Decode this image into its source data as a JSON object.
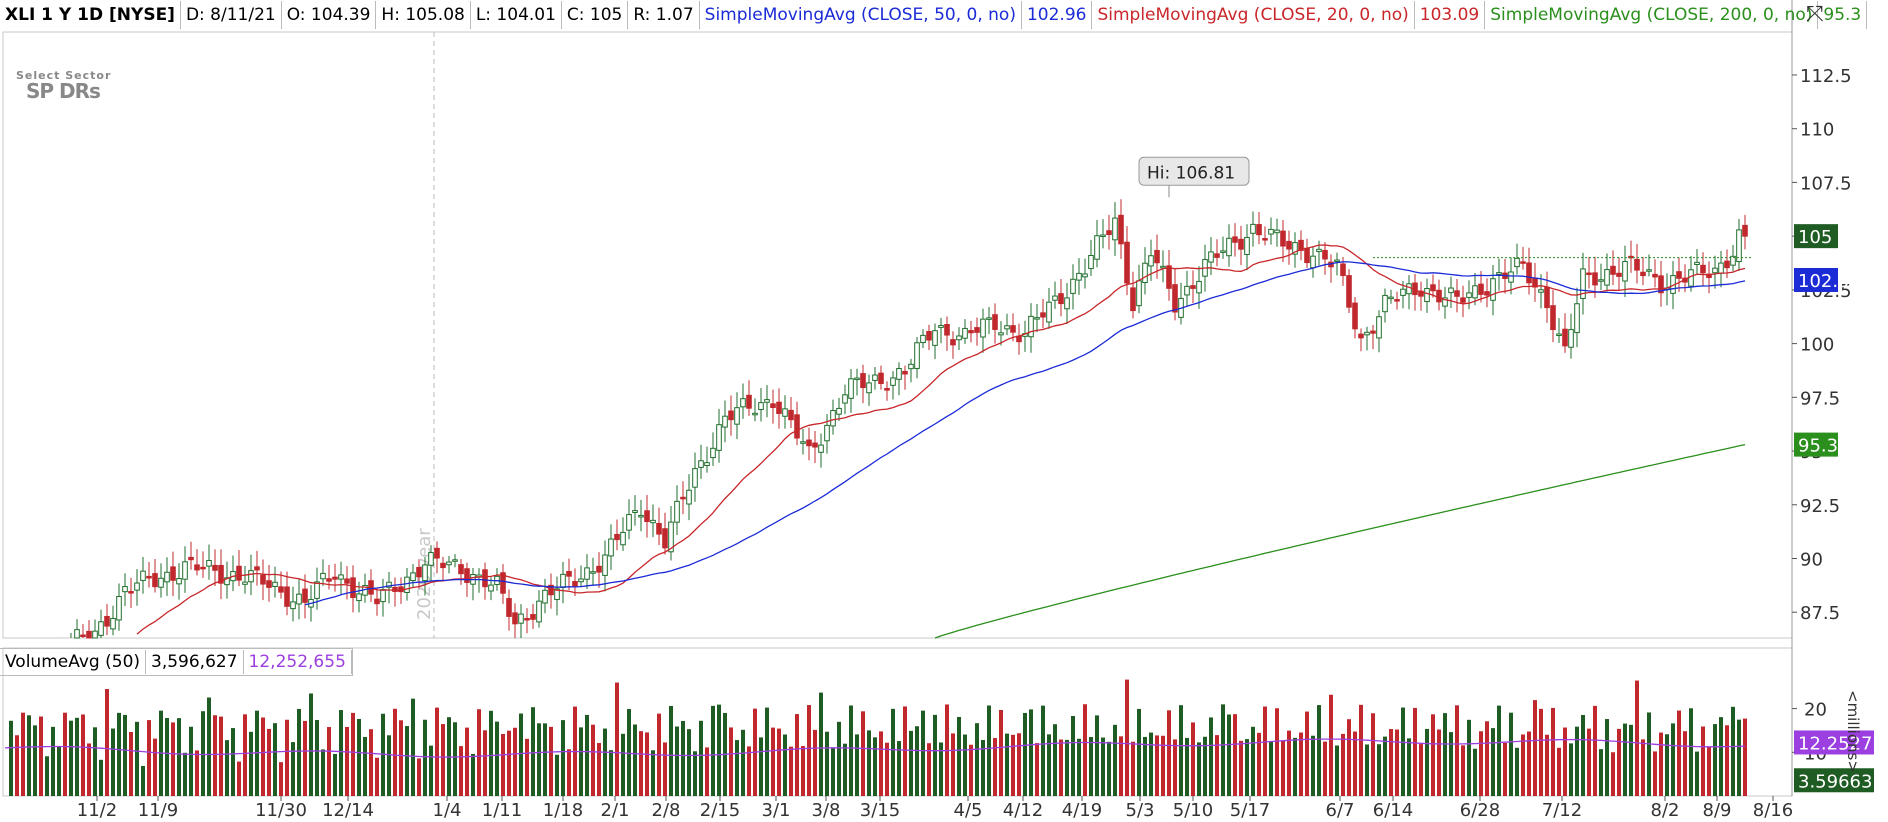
{
  "header": {
    "symbol": "XLI 1 Y 1D [NYSE]",
    "date": "D: 8/11/21",
    "open": "O: 104.39",
    "high": "H: 105.08",
    "low": "L: 104.01",
    "close": "C: 105",
    "range": "R: 1.07",
    "sma50_label": "SimpleMovingAvg (CLOSE, 50, 0, no)",
    "sma50_value": "102.96",
    "sma20_label": "SimpleMovingAvg (CLOSE, 20, 0, no)",
    "sma20_value": "103.09",
    "sma200_label": "SimpleMovingAvg (CLOSE, 200, 0, no)",
    "sma200_value": "95.3"
  },
  "volume_header": {
    "label": "VolumeAvg (50)",
    "volume": "3,596,627",
    "avg": "12,252,655"
  },
  "logo": {
    "line1": "Select Sector",
    "line2": "SP DRs"
  },
  "watermark": "2020 year",
  "unit_label": "<millions>",
  "settings_icon": "drawing-tools-icon",
  "colors": {
    "up": "#1f6e2c",
    "down": "#c0282d",
    "sma50": "#1b2bd6",
    "sma20": "#c8262a",
    "sma200": "#2a8f1c",
    "vol_avg": "#9b3fe0"
  },
  "chart_data": {
    "type": "candlestick",
    "price_axis": {
      "ticks": [
        87.5,
        90,
        92.5,
        95,
        97.5,
        100,
        102.5,
        105,
        107.5,
        110,
        112.5
      ],
      "range": [
        86.3,
        114.5
      ]
    },
    "volume_axis": {
      "ticks": [
        10,
        20
      ],
      "range": [
        0,
        27
      ],
      "unit": "millions"
    },
    "x_ticks": [
      "11/2",
      "11/9",
      "11/30",
      "12/14",
      "1/4",
      "1/11",
      "1/18",
      "2/1",
      "2/8",
      "2/15",
      "3/1",
      "3/8",
      "3/15",
      "4/5",
      "4/12",
      "4/19",
      "5/3",
      "5/10",
      "5/17",
      "6/7",
      "6/14",
      "6/28",
      "7/12",
      "8/2",
      "8/9",
      "8/16"
    ],
    "close_anchors": [
      [
        0,
        84.5
      ],
      [
        15,
        86.5
      ],
      [
        20,
        88.5
      ],
      [
        30,
        89.6
      ],
      [
        40,
        89.2
      ],
      [
        50,
        88.0
      ],
      [
        55,
        89.3
      ],
      [
        62,
        88.0
      ],
      [
        70,
        89.8
      ],
      [
        76,
        89.6
      ],
      [
        82,
        88.6
      ],
      [
        85,
        87.0
      ],
      [
        90,
        88.2
      ],
      [
        100,
        90.0
      ],
      [
        106,
        92.5
      ],
      [
        110,
        90.8
      ],
      [
        115,
        94.0
      ],
      [
        120,
        96.5
      ],
      [
        128,
        97.5
      ],
      [
        134,
        94.8
      ],
      [
        140,
        97.8
      ],
      [
        150,
        98.7
      ],
      [
        155,
        100.8
      ],
      [
        160,
        100.3
      ],
      [
        165,
        101.0
      ],
      [
        170,
        100.4
      ],
      [
        175,
        102.0
      ],
      [
        180,
        103.5
      ],
      [
        185,
        105.8
      ],
      [
        188,
        102.0
      ],
      [
        191,
        104.2
      ],
      [
        195,
        101.9
      ],
      [
        200,
        103.6
      ],
      [
        208,
        105.4
      ],
      [
        213,
        104.6
      ],
      [
        218,
        104.3
      ],
      [
        222,
        103.5
      ],
      [
        226,
        100.2
      ],
      [
        230,
        101.8
      ],
      [
        236,
        102.7
      ],
      [
        242,
        101.9
      ],
      [
        248,
        103.0
      ],
      [
        253,
        103.5
      ],
      [
        257,
        102.0
      ],
      [
        260,
        99.5
      ],
      [
        263,
        103.0
      ],
      [
        270,
        103.6
      ],
      [
        276,
        102.9
      ],
      [
        282,
        103.2
      ],
      [
        285,
        103.4
      ],
      [
        288,
        104.4
      ],
      [
        289,
        105.0
      ]
    ],
    "annotations": {
      "high_label": "Hi: 106.81",
      "high_value": 106.81,
      "resistance": 104.0
    },
    "last_labels": {
      "close": "105",
      "sma50": "102.96",
      "sma200": "95.3"
    },
    "volume_last_labels": {
      "avg": "12.2527",
      "volume": "3.59663"
    },
    "sma20_end": 103.09,
    "sma50_end": 102.96,
    "sma200_end": 95.3,
    "sma200_start": 86.3,
    "volume_avg": 12.25
  }
}
